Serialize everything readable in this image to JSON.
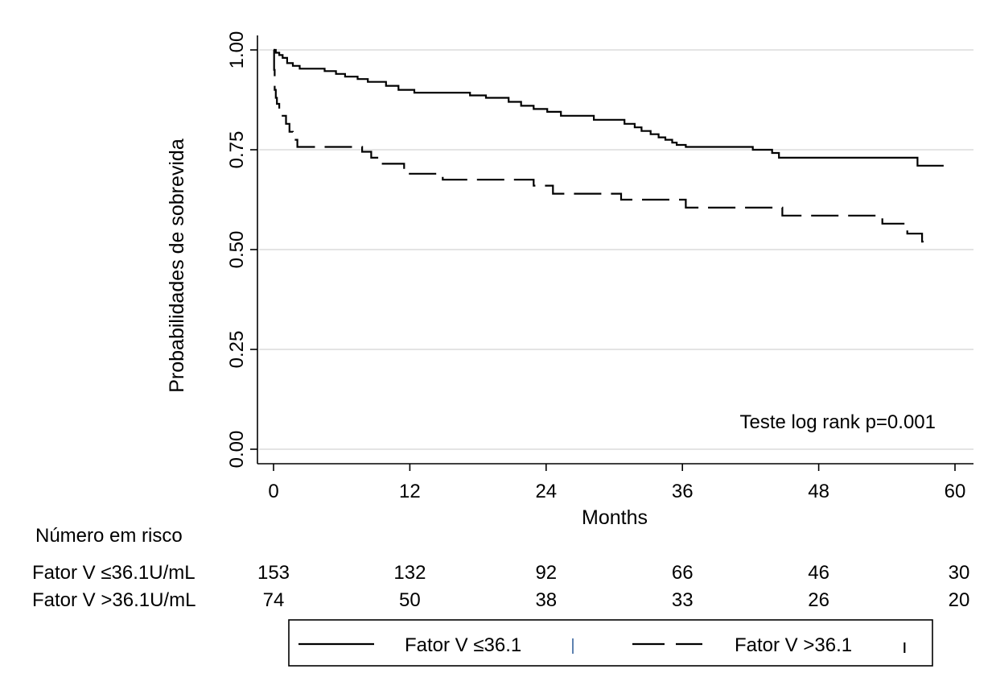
{
  "chart_data": {
    "type": "line",
    "subtype": "kaplan-meier",
    "title": "",
    "xlabel": "Months",
    "ylabel": "Probabilidades de sobrevida",
    "xlim": [
      0,
      60
    ],
    "ylim": [
      0,
      1
    ],
    "xticks": [
      0,
      12,
      24,
      36,
      48,
      60
    ],
    "xtick_labels": [
      "0",
      "12",
      "24",
      "36",
      "48",
      "60"
    ],
    "yticks": [
      0,
      0.25,
      0.5,
      0.75,
      1
    ],
    "ytick_labels": [
      "0.00",
      "0.25",
      "0.50",
      "0.75",
      "1.00"
    ],
    "grid": "horizontal",
    "annotation": "Teste log rank p=0.001",
    "series": [
      {
        "name": "Fator V ≤36.1",
        "style": "solid",
        "color": "#000000",
        "x": [
          0,
          0.2,
          0.5,
          0.8,
          1.2,
          1.7,
          2.3,
          4.5,
          5.5,
          6.3,
          7.4,
          8.3,
          9.9,
          11,
          12.4,
          17.3,
          18.7,
          20.7,
          21.8,
          22.9,
          24.1,
          25.3,
          28.2,
          30.9,
          31.8,
          32.4,
          33.2,
          33.9,
          34.5,
          35.1,
          35.5,
          36.3,
          42.2,
          43.9,
          44.5,
          53.8,
          55.6,
          56.7,
          57.3,
          59
        ],
        "y": [
          1,
          0.993,
          0.987,
          0.98,
          0.967,
          0.96,
          0.953,
          0.947,
          0.94,
          0.933,
          0.927,
          0.92,
          0.91,
          0.9,
          0.893,
          0.886,
          0.88,
          0.87,
          0.86,
          0.852,
          0.845,
          0.835,
          0.825,
          0.815,
          0.806,
          0.797,
          0.789,
          0.781,
          0.775,
          0.768,
          0.762,
          0.757,
          0.75,
          0.742,
          0.73,
          0.73,
          0.73,
          0.71,
          0.71,
          0.71
        ]
      },
      {
        "name": "Fator V >36.1",
        "style": "dashed",
        "color": "#000000",
        "x": [
          0,
          0.05,
          0.1,
          0.2,
          0.3,
          0.5,
          0.8,
          1.1,
          1.4,
          1.7,
          2.1,
          7.8,
          8.6,
          9.3,
          11.5,
          14.9,
          22.9,
          24.6,
          30.6,
          36.3,
          44.8,
          53.6,
          55.8,
          57.1,
          57.3
        ],
        "y": [
          1,
          0.95,
          0.9,
          0.88,
          0.865,
          0.85,
          0.835,
          0.815,
          0.795,
          0.775,
          0.757,
          0.745,
          0.73,
          0.715,
          0.69,
          0.675,
          0.66,
          0.64,
          0.625,
          0.605,
          0.585,
          0.565,
          0.54,
          0.52,
          0.51
        ]
      }
    ],
    "risk_table": {
      "title": "Número em risco",
      "times": [
        0,
        12,
        24,
        36,
        48,
        60
      ],
      "rows": [
        {
          "label": "Fator V ≤36.1U/mL",
          "values": [
            "153",
            "132",
            "92",
            "66",
            "46",
            "30"
          ]
        },
        {
          "label": "Fator V >36.1U/mL",
          "values": [
            "74",
            "50",
            "38",
            "33",
            "26",
            "20"
          ]
        }
      ]
    },
    "legend": {
      "position": "bottom",
      "entries": [
        {
          "label": "Fator V ≤36.1",
          "style": "solid",
          "censor_mark": "ı"
        },
        {
          "label": "Fator V >36.1",
          "style": "dashed",
          "censor_mark": "ı"
        }
      ]
    }
  }
}
